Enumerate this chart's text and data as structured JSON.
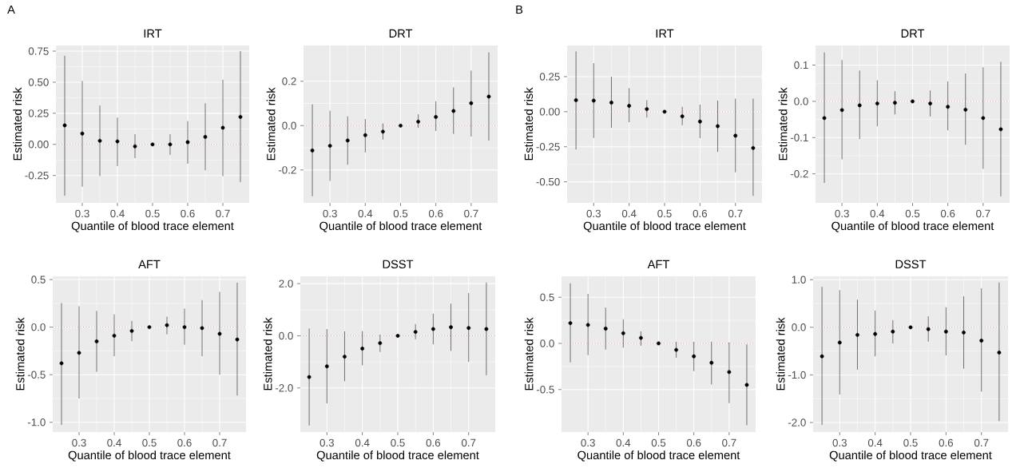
{
  "chart_data": [
    {
      "type": "scatter",
      "title": "IRT",
      "xlabel": "Quantile of blood trace element",
      "ylabel": "Estimated risk",
      "annotations": [
        "A"
      ],
      "color": "#000000",
      "grid": true,
      "x": [
        0.25,
        0.3,
        0.35,
        0.4,
        0.45,
        0.5,
        0.55,
        0.6,
        0.65,
        0.7,
        0.75
      ],
      "values": [
        0.153,
        0.087,
        0.029,
        0.024,
        -0.016,
        0,
        0.0,
        0.018,
        0.06,
        0.134,
        0.221
      ],
      "errors": [
        [
          -0.413,
          0.713
        ],
        [
          -0.34,
          0.51
        ],
        [
          -0.255,
          0.313
        ],
        [
          -0.174,
          0.216
        ],
        [
          -0.11,
          0.082
        ],
        null,
        [
          -0.084,
          0.082
        ],
        [
          -0.155,
          0.187
        ],
        [
          -0.208,
          0.33
        ],
        [
          -0.255,
          0.52
        ],
        [
          -0.303,
          0.75
        ]
      ],
      "xlim": [
        0.225,
        0.775
      ],
      "xticks": [
        0.3,
        0.4,
        0.5,
        0.6,
        0.7
      ],
      "ylim": [
        -0.47,
        0.795
      ],
      "yticks": [
        {
          "value": -0.25,
          "label": "-0.25"
        },
        {
          "value": 0,
          "label": "0.00"
        },
        {
          "value": 0.25,
          "label": "0.25"
        },
        {
          "value": 0.5,
          "label": "0.50"
        },
        {
          "value": 0.75,
          "label": "0.75"
        }
      ],
      "ref_lines": [
        {
          "axis": "y",
          "value": 0,
          "color": "#cd5c5c",
          "line_style": "dotted"
        }
      ]
    },
    {
      "type": "scatter",
      "title": "DRT",
      "xlabel": "Quantile of blood trace element",
      "ylabel": "Estimated risk",
      "color": "#000000",
      "grid": true,
      "x": [
        0.25,
        0.3,
        0.35,
        0.4,
        0.45,
        0.5,
        0.55,
        0.6,
        0.65,
        0.7,
        0.75
      ],
      "values": [
        -0.112,
        -0.091,
        -0.067,
        -0.043,
        -0.027,
        0,
        0.018,
        0.039,
        0.066,
        0.101,
        0.131
      ],
      "errors": [
        [
          -0.318,
          0.096
        ],
        [
          -0.249,
          0.067
        ],
        [
          -0.176,
          0.042
        ],
        [
          -0.121,
          0.03
        ],
        [
          -0.063,
          0.01
        ],
        null,
        [
          -0.01,
          0.051
        ],
        [
          -0.024,
          0.11
        ],
        [
          -0.037,
          0.172
        ],
        [
          -0.049,
          0.248
        ],
        [
          -0.067,
          0.33
        ]
      ],
      "xlim": [
        0.225,
        0.775
      ],
      "xticks": [
        0.3,
        0.4,
        0.5,
        0.6,
        0.7
      ],
      "ylim": [
        -0.348,
        0.361
      ],
      "yticks": [
        {
          "value": -0.2,
          "label": "-0.2"
        },
        {
          "value": 0,
          "label": "0.0"
        },
        {
          "value": 0.2,
          "label": "0.2"
        }
      ],
      "ref_lines": [
        {
          "axis": "y",
          "value": 0,
          "color": "#cd5c5c",
          "line_style": "dotted"
        }
      ]
    },
    {
      "type": "scatter",
      "title": "AFT",
      "xlabel": "Quantile of blood trace element",
      "ylabel": "Estimated risk",
      "color": "#000000",
      "grid": true,
      "x": [
        0.25,
        0.3,
        0.35,
        0.4,
        0.45,
        0.5,
        0.55,
        0.6,
        0.65,
        0.7,
        0.75
      ],
      "values": [
        -0.38,
        -0.27,
        -0.15,
        -0.09,
        -0.04,
        0,
        0.02,
        0.0,
        -0.01,
        -0.07,
        -0.13
      ],
      "errors": [
        [
          -1.027,
          0.253
        ],
        [
          -0.75,
          0.219
        ],
        [
          -0.469,
          0.171
        ],
        [
          -0.305,
          0.134
        ],
        [
          -0.147,
          0.065
        ],
        null,
        [
          -0.075,
          0.11
        ],
        [
          -0.185,
          0.195
        ],
        [
          -0.305,
          0.284
        ],
        [
          -0.5,
          0.37
        ],
        [
          -0.719,
          0.466
        ]
      ],
      "xlim": [
        0.225,
        0.775
      ],
      "xticks": [
        0.3,
        0.4,
        0.5,
        0.6,
        0.7
      ],
      "ylim": [
        -1.103,
        0.534
      ],
      "yticks": [
        {
          "value": -1.0,
          "label": "-1.0"
        },
        {
          "value": -0.5,
          "label": "-0.5"
        },
        {
          "value": 0,
          "label": "0.0"
        },
        {
          "value": 0.5,
          "label": "0.5"
        }
      ],
      "ref_lines": [
        {
          "axis": "y",
          "value": 0,
          "color": "#cd5c5c",
          "line_style": "dotted"
        }
      ]
    },
    {
      "type": "scatter",
      "title": "DSST",
      "xlabel": "Quantile of blood trace element",
      "ylabel": "Estimated risk",
      "color": "#000000",
      "grid": true,
      "x": [
        0.25,
        0.3,
        0.35,
        0.4,
        0.45,
        0.5,
        0.55,
        0.6,
        0.65,
        0.7,
        0.75
      ],
      "values": [
        -1.58,
        -1.17,
        -0.8,
        -0.49,
        -0.28,
        0,
        0.15,
        0.26,
        0.33,
        0.3,
        0.26
      ],
      "errors": [
        [
          -3.44,
          0.28
        ],
        [
          -2.59,
          0.26
        ],
        [
          -1.74,
          0.17
        ],
        [
          -1.13,
          0.18
        ],
        [
          -0.62,
          0.05
        ],
        null,
        [
          -0.13,
          0.45
        ],
        [
          -0.33,
          0.85
        ],
        [
          -0.58,
          1.23
        ],
        [
          -1.0,
          1.64
        ],
        [
          -1.51,
          2.04
        ]
      ],
      "xlim": [
        0.225,
        0.775
      ],
      "xticks": [
        0.3,
        0.4,
        0.5,
        0.6,
        0.7
      ],
      "ylim": [
        -3.69,
        2.28
      ],
      "yticks": [
        {
          "value": -2.0,
          "label": "-2.0"
        },
        {
          "value": 0,
          "label": "0.0"
        },
        {
          "value": 2.0,
          "label": "2.0"
        }
      ],
      "ref_lines": [
        {
          "axis": "y",
          "value": 0,
          "color": "#cd5c5c",
          "line_style": "dotted"
        }
      ]
    },
    {
      "type": "scatter",
      "title": "IRT",
      "xlabel": "Quantile of blood trace element",
      "ylabel": "Estimated risk",
      "annotations": [
        "B"
      ],
      "color": "#000000",
      "grid": true,
      "x": [
        0.25,
        0.3,
        0.35,
        0.4,
        0.45,
        0.5,
        0.55,
        0.6,
        0.65,
        0.7,
        0.75
      ],
      "values": [
        0.082,
        0.079,
        0.065,
        0.042,
        0.019,
        0,
        -0.033,
        -0.07,
        -0.103,
        -0.171,
        -0.259
      ],
      "errors": [
        [
          -0.269,
          0.43
        ],
        [
          -0.187,
          0.346
        ],
        [
          -0.114,
          0.25
        ],
        [
          -0.075,
          0.168
        ],
        [
          -0.042,
          0.082
        ],
        null,
        [
          -0.096,
          0.035
        ],
        [
          -0.189,
          0.051
        ],
        [
          -0.287,
          0.079
        ],
        [
          -0.432,
          0.093
        ],
        [
          -0.6,
          0.093
        ]
      ],
      "xlim": [
        0.225,
        0.775
      ],
      "xticks": [
        0.3,
        0.4,
        0.5,
        0.6,
        0.7
      ],
      "ylim": [
        -0.65,
        0.472
      ],
      "yticks": [
        {
          "value": -0.5,
          "label": "-0.50"
        },
        {
          "value": -0.25,
          "label": "-0.25"
        },
        {
          "value": 0,
          "label": "0.00"
        },
        {
          "value": 0.25,
          "label": "0.25"
        }
      ],
      "ref_lines": [
        {
          "axis": "y",
          "value": 0,
          "color": "#cd5c5c",
          "line_style": "dotted"
        }
      ]
    },
    {
      "type": "scatter",
      "title": "DRT",
      "xlabel": "Quantile of blood trace element",
      "ylabel": "Estimated risk",
      "color": "#000000",
      "grid": true,
      "x": [
        0.25,
        0.3,
        0.35,
        0.4,
        0.45,
        0.5,
        0.55,
        0.6,
        0.65,
        0.7,
        0.75
      ],
      "values": [
        -0.046,
        -0.024,
        -0.011,
        -0.006,
        -0.004,
        0,
        -0.006,
        -0.015,
        -0.023,
        -0.046,
        -0.077
      ],
      "errors": [
        [
          -0.225,
          0.135
        ],
        [
          -0.16,
          0.114
        ],
        [
          -0.104,
          0.085
        ],
        [
          -0.069,
          0.058
        ],
        [
          -0.036,
          0.028
        ],
        null,
        [
          -0.042,
          0.03
        ],
        [
          -0.08,
          0.055
        ],
        [
          -0.12,
          0.077
        ],
        [
          -0.186,
          0.094
        ],
        [
          -0.262,
          0.109
        ]
      ],
      "xlim": [
        0.225,
        0.775
      ],
      "xticks": [
        0.3,
        0.4,
        0.5,
        0.6,
        0.7
      ],
      "ylim": [
        -0.28,
        0.154
      ],
      "yticks": [
        {
          "value": -0.2,
          "label": "-0.2"
        },
        {
          "value": -0.1,
          "label": "-0.1"
        },
        {
          "value": 0,
          "label": "0.0"
        },
        {
          "value": 0.1,
          "label": "0.1"
        }
      ],
      "ref_lines": [
        {
          "axis": "y",
          "value": 0,
          "color": "#cd5c5c",
          "line_style": "dotted"
        }
      ]
    },
    {
      "type": "scatter",
      "title": "AFT",
      "xlabel": "Quantile of blood trace element",
      "ylabel": "Estimated risk",
      "color": "#000000",
      "grid": true,
      "x": [
        0.25,
        0.3,
        0.35,
        0.4,
        0.45,
        0.5,
        0.55,
        0.6,
        0.65,
        0.7,
        0.75
      ],
      "values": [
        0.22,
        0.2,
        0.16,
        0.11,
        0.06,
        0,
        -0.07,
        -0.14,
        -0.21,
        -0.31,
        -0.45
      ],
      "errors": [
        [
          -0.205,
          0.65
        ],
        [
          -0.127,
          0.537
        ],
        [
          -0.067,
          0.389
        ],
        [
          -0.046,
          0.261
        ],
        [
          -0.025,
          0.131
        ],
        null,
        [
          -0.155,
          0.018
        ],
        [
          -0.3,
          0.018
        ],
        [
          -0.445,
          0.018
        ],
        [
          -0.647,
          0.011
        ],
        [
          -0.887,
          -0.011
        ]
      ],
      "xlim": [
        0.225,
        0.775
      ],
      "xticks": [
        0.3,
        0.4,
        0.5,
        0.6,
        0.7
      ],
      "ylim": [
        -0.961,
        0.727
      ],
      "yticks": [
        {
          "value": -0.5,
          "label": "-0.5"
        },
        {
          "value": 0,
          "label": "0.0"
        },
        {
          "value": 0.5,
          "label": "0.5"
        }
      ],
      "ref_lines": [
        {
          "axis": "y",
          "value": 0,
          "color": "#cd5c5c",
          "line_style": "dotted"
        }
      ]
    },
    {
      "type": "scatter",
      "title": "DSST",
      "xlabel": "Quantile of blood trace element",
      "ylabel": "Estimated risk",
      "color": "#000000",
      "grid": true,
      "x": [
        0.25,
        0.3,
        0.35,
        0.4,
        0.45,
        0.5,
        0.55,
        0.6,
        0.65,
        0.7,
        0.75
      ],
      "values": [
        -0.61,
        -0.32,
        -0.16,
        -0.14,
        -0.09,
        0,
        -0.04,
        -0.09,
        -0.11,
        -0.28,
        -0.53
      ],
      "errors": [
        [
          -2.05,
          0.85
        ],
        [
          -1.41,
          0.78
        ],
        [
          -0.89,
          0.58
        ],
        [
          -0.61,
          0.35
        ],
        [
          -0.34,
          0.15
        ],
        null,
        [
          -0.3,
          0.23
        ],
        [
          -0.59,
          0.42
        ],
        [
          -0.87,
          0.65
        ],
        [
          -1.35,
          0.82
        ],
        [
          -1.97,
          0.94
        ]
      ],
      "xlim": [
        0.225,
        0.775
      ],
      "xticks": [
        0.3,
        0.4,
        0.5,
        0.6,
        0.7
      ],
      "ylim": [
        -2.2,
        1.07
      ],
      "yticks": [
        {
          "value": -2.0,
          "label": "-2.0"
        },
        {
          "value": -1.0,
          "label": "-1.0"
        },
        {
          "value": 0,
          "label": "0.0"
        },
        {
          "value": 1.0,
          "label": "1.0"
        }
      ],
      "ref_lines": [
        {
          "axis": "y",
          "value": 0,
          "color": "#cd5c5c",
          "line_style": "dotted"
        }
      ]
    }
  ]
}
